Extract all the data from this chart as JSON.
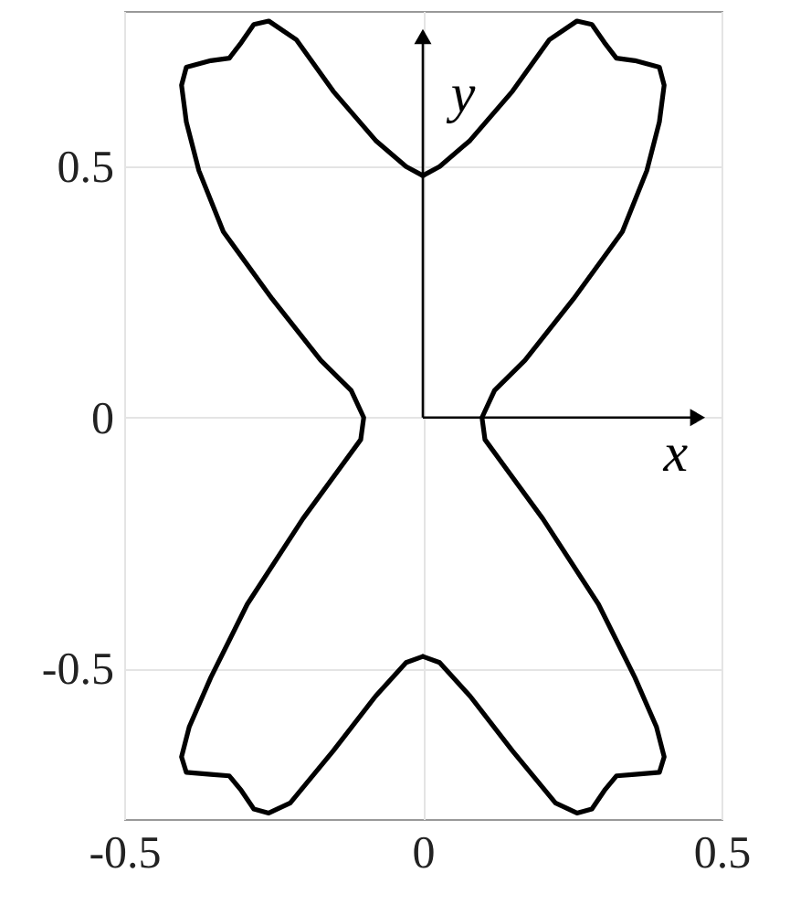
{
  "chart_data": {
    "type": "line",
    "series": [
      {
        "color": "#000000",
        "x": [
          0,
          0.028,
          0.079,
          0.15,
          0.212,
          0.258,
          0.283,
          0.304,
          0.324,
          0.355,
          0.396,
          0.404,
          0.396,
          0.375,
          0.334,
          0.252,
          0.171,
          0.12,
          0.099,
          0.104,
          0.201,
          0.294,
          0.355,
          0.391,
          0.404,
          0.396,
          0.355,
          0.324,
          0.304,
          0.283,
          0.258,
          0.222,
          0.15,
          0.079,
          0.028,
          0
        ],
        "values": [
          0.482,
          0.5,
          0.552,
          0.65,
          0.753,
          0.79,
          0.783,
          0.747,
          0.716,
          0.711,
          0.698,
          0.662,
          0.589,
          0.492,
          0.37,
          0.236,
          0.114,
          0.054,
          0,
          -0.044,
          -0.202,
          -0.372,
          -0.518,
          -0.616,
          -0.676,
          -0.707,
          -0.711,
          -0.714,
          -0.743,
          -0.78,
          -0.788,
          -0.768,
          -0.664,
          -0.555,
          -0.488,
          -0.476
        ]
      },
      {
        "color": "#000000",
        "x": [
          0,
          -0.028,
          -0.079,
          -0.15,
          -0.222,
          -0.258,
          -0.283,
          -0.304,
          -0.324,
          -0.355,
          -0.396,
          -0.404,
          -0.391,
          -0.355,
          -0.294,
          -0.201,
          -0.104,
          -0.099,
          -0.12,
          -0.171,
          -0.252,
          -0.334,
          -0.375,
          -0.396,
          -0.404,
          -0.396,
          -0.355,
          -0.324,
          -0.304,
          -0.283,
          -0.258,
          -0.212,
          -0.15,
          -0.079,
          -0.028,
          0
        ],
        "values": [
          -0.476,
          -0.488,
          -0.555,
          -0.664,
          -0.768,
          -0.788,
          -0.78,
          -0.743,
          -0.714,
          -0.711,
          -0.707,
          -0.676,
          -0.616,
          -0.518,
          -0.372,
          -0.202,
          -0.044,
          0,
          0.054,
          0.114,
          0.236,
          0.37,
          0.492,
          0.589,
          0.662,
          0.698,
          0.711,
          0.716,
          0.747,
          0.783,
          0.79,
          0.753,
          0.65,
          0.552,
          0.5,
          0.482
        ]
      }
    ],
    "xlim": [
      -0.5,
      0.5
    ],
    "ylim": [
      -0.8,
      0.81
    ],
    "xticks": [
      -0.5,
      {
        "value": 0,
        "label": "0"
      },
      0.5
    ],
    "yticks": [
      -0.5,
      {
        "value": 0,
        "label": "0"
      },
      0.5
    ],
    "grid": true,
    "marker": "none",
    "line_style": "solid",
    "annotations": [
      "x",
      "y"
    ]
  }
}
